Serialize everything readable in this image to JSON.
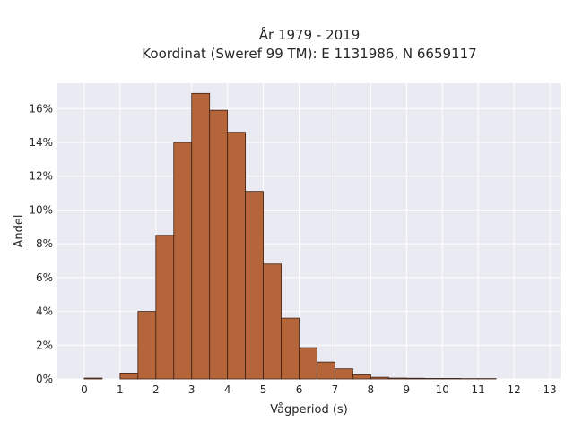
{
  "chart_data": {
    "type": "bar",
    "title": "År 1979 - 2019",
    "subtitle": "Koordinat (Sweref 99 TM): E 1131986, N 6659117",
    "xlabel": "Vågperiod (s)",
    "ylabel": "Andel",
    "xlim": [
      -0.75,
      13.3
    ],
    "ylim": [
      0,
      0.175
    ],
    "bin_width": 0.5,
    "bins": [
      {
        "x0": 0.0,
        "value": 0.0005
      },
      {
        "x0": 0.5,
        "value": 0.0
      },
      {
        "x0": 1.0,
        "value": 0.0035
      },
      {
        "x0": 1.5,
        "value": 0.04
      },
      {
        "x0": 2.0,
        "value": 0.085
      },
      {
        "x0": 2.5,
        "value": 0.14
      },
      {
        "x0": 3.0,
        "value": 0.169
      },
      {
        "x0": 3.5,
        "value": 0.159
      },
      {
        "x0": 4.0,
        "value": 0.146
      },
      {
        "x0": 4.5,
        "value": 0.111
      },
      {
        "x0": 5.0,
        "value": 0.068
      },
      {
        "x0": 5.5,
        "value": 0.036
      },
      {
        "x0": 6.0,
        "value": 0.0185
      },
      {
        "x0": 6.5,
        "value": 0.01
      },
      {
        "x0": 7.0,
        "value": 0.006
      },
      {
        "x0": 7.5,
        "value": 0.0025
      },
      {
        "x0": 8.0,
        "value": 0.001
      },
      {
        "x0": 8.5,
        "value": 0.0005
      },
      {
        "x0": 9.0,
        "value": 0.0004
      },
      {
        "x0": 9.5,
        "value": 0.0003
      },
      {
        "x0": 10.0,
        "value": 0.0003
      },
      {
        "x0": 10.5,
        "value": 0.0002
      },
      {
        "x0": 11.0,
        "value": 0.0002
      }
    ],
    "x_ticks": [
      "0",
      "1",
      "2",
      "3",
      "4",
      "5",
      "6",
      "7",
      "8",
      "9",
      "10",
      "11",
      "12",
      "13"
    ],
    "y_ticks": [
      {
        "value": 0.0,
        "label": "0%"
      },
      {
        "value": 0.02,
        "label": "2%"
      },
      {
        "value": 0.04,
        "label": "4%"
      },
      {
        "value": 0.06,
        "label": "6%"
      },
      {
        "value": 0.08,
        "label": "8%"
      },
      {
        "value": 0.1,
        "label": "10%"
      },
      {
        "value": 0.12,
        "label": "12%"
      },
      {
        "value": 0.14,
        "label": "14%"
      },
      {
        "value": 0.16,
        "label": "16%"
      }
    ],
    "grid": true,
    "colors": {
      "bar_fill": "#b5653a",
      "bar_edge": "#3d2114",
      "plot_background": "#eaeaf2",
      "grid": "#ffffff"
    }
  }
}
